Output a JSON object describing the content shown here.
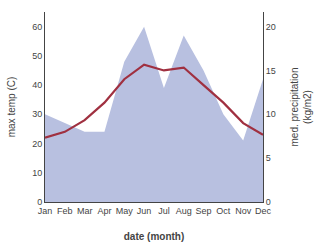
{
  "chart_data": {
    "type": "line",
    "x_label": "date (month)",
    "y_label": "max temp (C)",
    "y2_label": "med. precipitation\n(kg/m2)",
    "categories": [
      "Jan",
      "Feb",
      "Mar",
      "Apr",
      "May",
      "Jun",
      "Jul",
      "Aug",
      "Sep",
      "Oct",
      "Nov",
      "Dec"
    ],
    "series": [
      {
        "type": "area",
        "axis": "y2",
        "color": "#b8c0e0",
        "values": [
          10,
          9,
          8,
          8,
          16,
          20,
          13,
          19,
          15,
          10,
          7,
          14
        ]
      },
      {
        "type": "line",
        "color": "#a03040",
        "values": [
          22,
          24,
          28,
          34,
          42,
          47,
          45,
          46,
          40,
          34,
          27,
          23
        ]
      }
    ],
    "ylim": [
      0,
      65
    ],
    "yticks": [
      0,
      10,
      20,
      30,
      40,
      50,
      60
    ],
    "y2lim": [
      0,
      21.67
    ],
    "y2ticks": [
      0,
      5,
      10,
      15,
      20
    ],
    "grid": false
  }
}
